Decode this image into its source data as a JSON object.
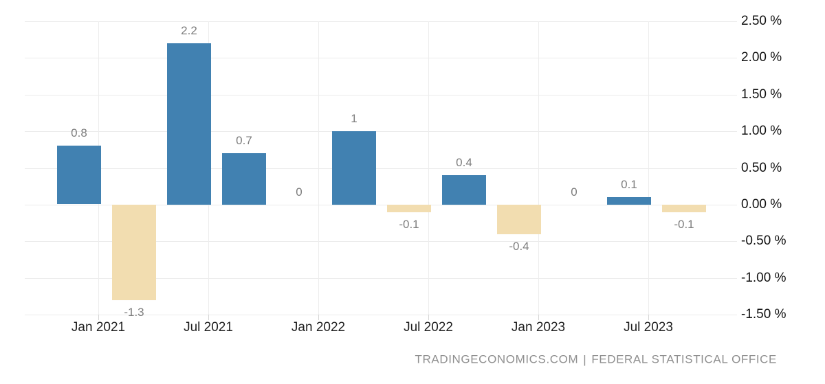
{
  "chart_data": {
    "type": "bar",
    "title": "",
    "unit": "%",
    "x_tick_labels": [
      "Jan 2021",
      "Jul 2021",
      "Jan 2022",
      "Jul 2022",
      "Jan 2023",
      "Jul 2023"
    ],
    "y_tick_labels": [
      "2.50 %",
      "2.00 %",
      "1.50 %",
      "1.00 %",
      "0.50 %",
      "0.00 %",
      "-0.50 %",
      "-1.00 %",
      "-1.50 %"
    ],
    "y_tick_values": [
      2.5,
      2.0,
      1.5,
      1.0,
      0.5,
      0.0,
      -0.5,
      -1.0,
      -1.5
    ],
    "ylim": [
      -1.5,
      2.5
    ],
    "grid": true,
    "legend": "none",
    "bars": [
      {
        "value": 0.8,
        "label": "0.8"
      },
      {
        "value": -1.3,
        "label": "-1.3"
      },
      {
        "value": 2.2,
        "label": "2.2"
      },
      {
        "value": 0.7,
        "label": "0.7"
      },
      {
        "value": 0,
        "label": "0"
      },
      {
        "value": 1,
        "label": "1"
      },
      {
        "value": -0.1,
        "label": "-0.1"
      },
      {
        "value": 0.4,
        "label": "0.4"
      },
      {
        "value": -0.4,
        "label": "-0.4"
      },
      {
        "value": 0,
        "label": "0"
      },
      {
        "value": 0.1,
        "label": "0.1"
      },
      {
        "value": -0.1,
        "label": "-0.1"
      }
    ],
    "colors": {
      "positive_bar": "#4181b1",
      "negative_bar": "#f2ddb0",
      "gridline": "#ebebeb",
      "bar_label": "#7d7d7d",
      "x_label": "#1f1f1f",
      "y_label": "#111111"
    }
  },
  "attribution": {
    "site": "TRADINGECONOMICS.COM",
    "separator": "|",
    "source": "FEDERAL STATISTICAL OFFICE",
    "color": "#8f8f8f"
  }
}
